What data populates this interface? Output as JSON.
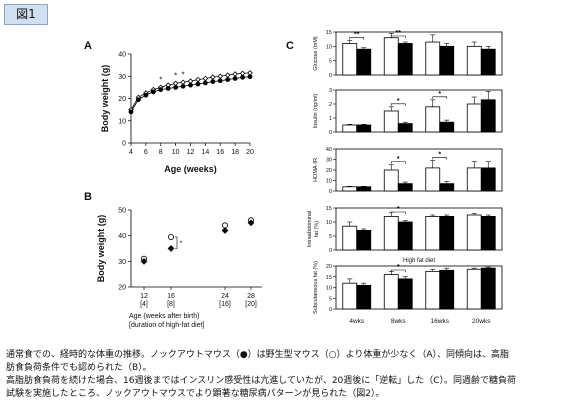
{
  "figure_label": "図1",
  "caption": [
    "通常食での、経時的な体重の推移。ノックアウトマウス（●）は野生型マウス（○）より体重が少なく（A）、同傾向は、高脂",
    "肪食負荷条件でも認められた（B）。",
    "高脂肪食負荷を続けた場合、16週後まではインスリン感受性は亢進していたが、20週後に「逆転」した（C）。同週齢で糖負荷",
    "試験を実施したところ、ノックアウトマウスでより顕著な糖尿病パターンが見られた（図2）。"
  ],
  "chart_data": [
    {
      "panel": "A",
      "type": "line",
      "xlabel": "Age (weeks)",
      "ylabel": "Body weight (g)",
      "xlim": [
        4,
        20
      ],
      "ylim": [
        0,
        40
      ],
      "xticks": [
        4,
        6,
        8,
        10,
        12,
        14,
        16,
        18,
        20
      ],
      "yticks": [
        0,
        10,
        20,
        30,
        40
      ],
      "x": [
        4,
        5,
        6,
        7,
        8,
        9,
        10,
        11,
        12,
        13,
        14,
        15,
        16,
        17,
        18,
        19,
        20
      ],
      "series": [
        {
          "marker": "open",
          "values": [
            15,
            20.5,
            22.5,
            24,
            25,
            26,
            26.8,
            27.3,
            27.8,
            28.5,
            29,
            29.6,
            30,
            30.5,
            31,
            31.3,
            31.5
          ]
        },
        {
          "marker": "filled",
          "values": [
            14,
            19.5,
            21.5,
            23,
            24,
            24.5,
            25,
            25.5,
            26,
            26.5,
            27,
            27.6,
            28,
            28.5,
            29,
            29.5,
            29.8
          ]
        }
      ],
      "significance": [
        {
          "x": 8,
          "label": "*"
        },
        {
          "x": 10,
          "label": "*"
        },
        {
          "x": 11,
          "label": "*"
        }
      ]
    },
    {
      "panel": "B",
      "type": "scatter",
      "xlabel_lines": [
        "Age (weeks after birth)",
        "[duration of high-fat diet]"
      ],
      "ylabel": "Body weight (g)",
      "ylim": [
        20,
        50
      ],
      "yticks": [
        20,
        30,
        40,
        50
      ],
      "categories": [
        {
          "age": "12",
          "duration": "[4]"
        },
        {
          "age": "16",
          "duration": "[8]"
        },
        {
          "age": "24",
          "duration": "[16]"
        },
        {
          "age": "28",
          "duration": "[20]"
        }
      ],
      "series": [
        {
          "marker": "open",
          "values": [
            31,
            39.5,
            44,
            46
          ]
        },
        {
          "marker": "filled",
          "values": [
            30,
            35,
            42,
            45
          ]
        }
      ],
      "significance": [
        {
          "category_index": 1,
          "label": "*"
        }
      ]
    },
    {
      "panel": "C",
      "type": "bar",
      "xlabel": "High fat diet",
      "categories": [
        "4wks",
        "8wks",
        "16wks",
        "20wks"
      ],
      "subplots": [
        {
          "ylabel": "Glucose (mM)",
          "ylim": [
            0,
            15
          ],
          "yticks": [
            0,
            5,
            10,
            15
          ],
          "series": [
            {
              "fill": "open",
              "values": [
                11,
                13,
                11.5,
                10
              ],
              "errors": [
                1,
                1.5,
                2.5,
                1.5
              ]
            },
            {
              "fill": "filled",
              "values": [
                9,
                11,
                10,
                9
              ],
              "errors": [
                0.5,
                0.5,
                1,
                1
              ]
            }
          ],
          "significance": [
            {
              "category_index": 0,
              "label": "**"
            },
            {
              "category_index": 1,
              "label": "**"
            }
          ]
        },
        {
          "ylabel": "Insulin (ng/ml)",
          "ylim": [
            0,
            3
          ],
          "yticks": [
            0,
            1,
            2,
            3
          ],
          "series": [
            {
              "fill": "open",
              "values": [
                0.5,
                1.5,
                1.8,
                2.0
              ],
              "errors": [
                0.05,
                0.3,
                0.5,
                0.5
              ]
            },
            {
              "fill": "filled",
              "values": [
                0.5,
                0.6,
                0.7,
                2.3
              ],
              "errors": [
                0.05,
                0.1,
                0.15,
                0.6
              ]
            }
          ],
          "significance": [
            {
              "category_index": 1,
              "label": "*"
            },
            {
              "category_index": 2,
              "label": "*"
            }
          ]
        },
        {
          "ylabel": "HOMA-IR",
          "ylim": [
            0,
            40
          ],
          "yticks": [
            0,
            10,
            20,
            30,
            40
          ],
          "series": [
            {
              "fill": "open",
              "values": [
                4,
                20,
                22,
                22
              ],
              "errors": [
                0.5,
                5,
                7,
                6
              ]
            },
            {
              "fill": "filled",
              "values": [
                4,
                7,
                7,
                22
              ],
              "errors": [
                0.5,
                1.5,
                2,
                6
              ]
            }
          ],
          "significance": [
            {
              "category_index": 1,
              "label": "*"
            },
            {
              "category_index": 2,
              "label": "*"
            }
          ]
        },
        {
          "ylabel_lines": [
            "Intraabdominal",
            "fat (%)"
          ],
          "ylim": [
            0,
            15
          ],
          "yticks": [
            0,
            5,
            10,
            15
          ],
          "series": [
            {
              "fill": "open",
              "values": [
                8.5,
                12,
                12,
                12.5
              ],
              "errors": [
                1.5,
                1.5,
                0.5,
                0.5
              ]
            },
            {
              "fill": "filled",
              "values": [
                7,
                10,
                12,
                12
              ],
              "errors": [
                0.5,
                0.5,
                0.5,
                0.5
              ]
            }
          ],
          "significance": [
            {
              "category_index": 1,
              "label": "*"
            }
          ]
        },
        {
          "ylabel": "Subcutaneous fat (%)",
          "ylim": [
            0,
            20
          ],
          "yticks": [
            0,
            5,
            10,
            15,
            20
          ],
          "series": [
            {
              "fill": "open",
              "values": [
                12,
                16,
                17.5,
                18.5
              ],
              "errors": [
                2,
                1.5,
                1,
                0.5
              ]
            },
            {
              "fill": "filled",
              "values": [
                11,
                14,
                18,
                19
              ],
              "errors": [
                1,
                1,
                1,
                0.5
              ]
            }
          ],
          "significance": [
            {
              "category_index": 1,
              "label": "*"
            }
          ]
        }
      ]
    }
  ]
}
